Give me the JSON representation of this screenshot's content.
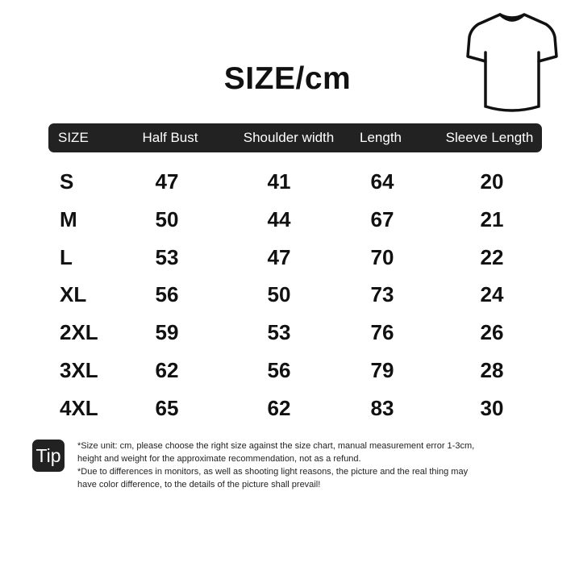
{
  "title": "SIZE/cm",
  "table": {
    "headers": [
      "SIZE",
      "Half Bust",
      "Shoulder width",
      "Length",
      "Sleeve Length"
    ],
    "rows": [
      [
        "S",
        "47",
        "41",
        "64",
        "20"
      ],
      [
        "M",
        "50",
        "44",
        "67",
        "21"
      ],
      [
        "L",
        "53",
        "47",
        "70",
        "22"
      ],
      [
        "XL",
        "56",
        "50",
        "73",
        "24"
      ],
      [
        "2XL",
        "59",
        "53",
        "76",
        "26"
      ],
      [
        "3XL",
        "62",
        "56",
        "79",
        "28"
      ],
      [
        "4XL",
        "65",
        "62",
        "83",
        "30"
      ]
    ]
  },
  "tip": {
    "label": "Tip",
    "lines": [
      "*Size unit: cm, please choose the right size against the size chart, manual measurement error 1-3cm,",
      "height and weight for the approximate recommendation, not as a refund.",
      "*Due to differences in monitors, as well as shooting light reasons, the picture and the real thing may",
      "have color difference, to the details of the picture shall prevail!"
    ]
  },
  "icons": {
    "garment": "t-shirt-icon"
  }
}
